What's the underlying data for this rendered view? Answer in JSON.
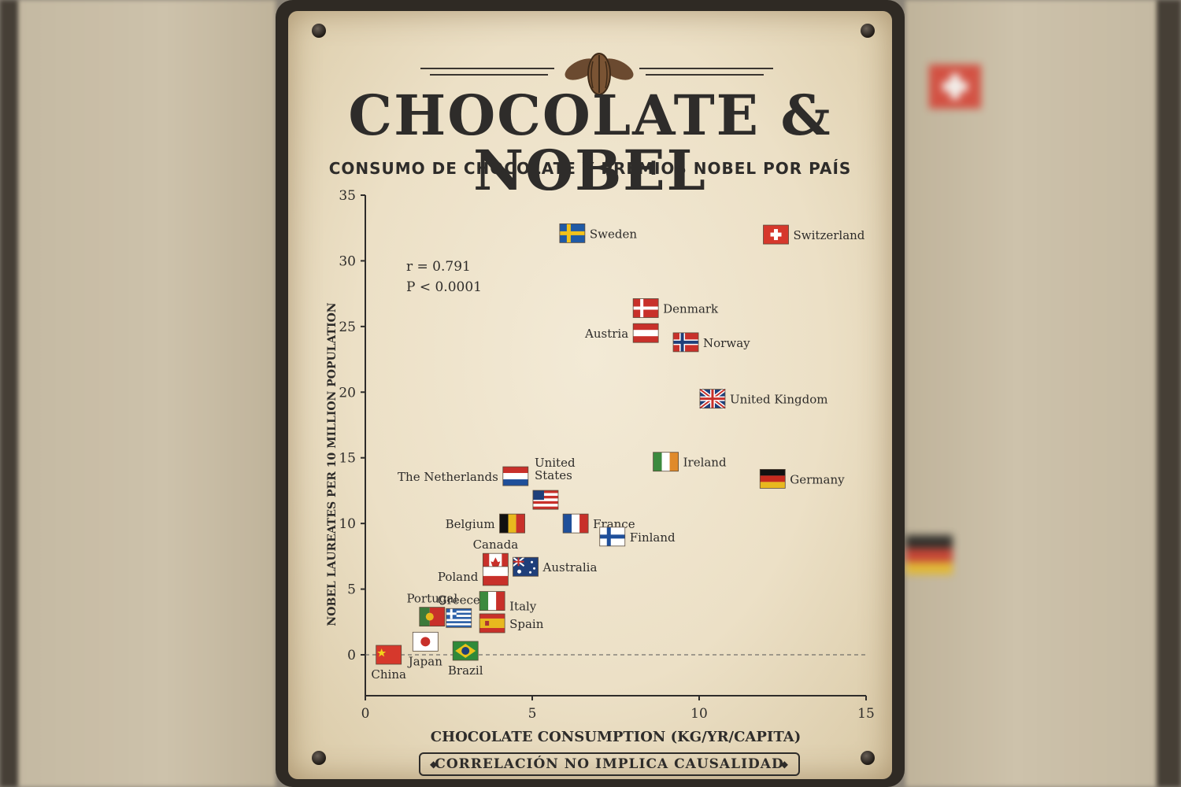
{
  "sign": {
    "title": "CHOCOLATE & NOBEL",
    "subtitle": "CONSUMO DE CHOCOLATE Y PREMIOS NOBEL POR PAÍS",
    "footer": "CORRELACIÓN NO IMPLICA CAUSALIDAD"
  },
  "chart_data": {
    "type": "scatter",
    "xlabel": "CHOCOLATE CONSUMPTION (KG/YR/CAPITA)",
    "ylabel": "NOBEL LAUREATES PER 10 MILLION POPULATION",
    "xlim": [
      0,
      15
    ],
    "ylim": [
      0,
      35
    ],
    "xticks": [
      0,
      5,
      10,
      15
    ],
    "yticks": [
      0,
      5,
      10,
      15,
      20,
      25,
      30,
      35
    ],
    "grid": false,
    "stats": [
      "r = 0.791",
      "P < 0.0001"
    ],
    "points": [
      {
        "label": "Sweden",
        "x": 6.2,
        "y": 32.1,
        "flag": "sweden"
      },
      {
        "label": "Switzerland",
        "x": 12.3,
        "y": 32.0,
        "flag": "switzerland"
      },
      {
        "label": "Denmark",
        "x": 8.4,
        "y": 26.4,
        "flag": "denmark"
      },
      {
        "label": "Austria",
        "x": 8.4,
        "y": 24.5,
        "flag": "austria"
      },
      {
        "label": "Norway",
        "x": 9.6,
        "y": 23.8,
        "flag": "norway"
      },
      {
        "label": "United Kingdom",
        "x": 10.4,
        "y": 19.5,
        "flag": "uk"
      },
      {
        "label": "Ireland",
        "x": 9.0,
        "y": 14.7,
        "flag": "ireland"
      },
      {
        "label": "Germany",
        "x": 12.2,
        "y": 13.4,
        "flag": "germany"
      },
      {
        "label": "United States",
        "x": 5.4,
        "y": 11.8,
        "flag": "usa"
      },
      {
        "label": "The Netherlands",
        "x": 4.5,
        "y": 13.6,
        "flag": "netherlands"
      },
      {
        "label": "France",
        "x": 6.3,
        "y": 10.0,
        "flag": "france"
      },
      {
        "label": "Belgium",
        "x": 4.4,
        "y": 10.0,
        "flag": "belgium"
      },
      {
        "label": "Finland",
        "x": 7.4,
        "y": 9.0,
        "flag": "finland"
      },
      {
        "label": "Canada",
        "x": 3.9,
        "y": 7.0,
        "flag": "canada"
      },
      {
        "label": "Australia",
        "x": 4.8,
        "y": 6.7,
        "flag": "australia"
      },
      {
        "label": "Poland",
        "x": 3.9,
        "y": 6.0,
        "flag": "poland"
      },
      {
        "label": "Italy",
        "x": 3.8,
        "y": 4.1,
        "flag": "italy"
      },
      {
        "label": "Greece",
        "x": 2.8,
        "y": 2.8,
        "flag": "greece"
      },
      {
        "label": "Portugal",
        "x": 2.0,
        "y": 2.9,
        "flag": "portugal"
      },
      {
        "label": "Spain",
        "x": 3.8,
        "y": 2.4,
        "flag": "spain"
      },
      {
        "label": "Japan",
        "x": 1.8,
        "y": 1.0,
        "flag": "japan"
      },
      {
        "label": "Brazil",
        "x": 3.0,
        "y": 0.3,
        "flag": "brazil"
      },
      {
        "label": "China",
        "x": 0.7,
        "y": 0.0,
        "flag": "china"
      }
    ]
  }
}
